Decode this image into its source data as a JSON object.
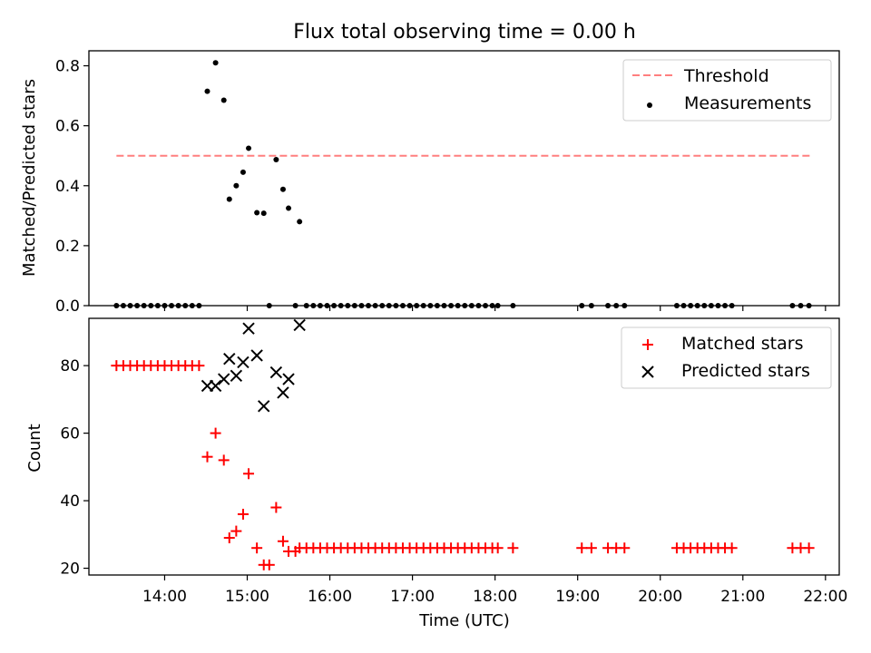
{
  "figure": {
    "title": "Flux total observing time = 0.00 h"
  },
  "colors": {
    "threshold": "#ff7f7f",
    "measurement": "#000000",
    "matched": "#ff0000",
    "predicted": "#000000"
  },
  "chart_data": [
    {
      "type": "scatter",
      "ylabel": "Matched/Predicted stars",
      "xlabel": "",
      "ylim": [
        0.0,
        0.85
      ],
      "xlim": [
        "13:05",
        "22:10"
      ],
      "x_axis_type": "time",
      "yticks": [
        "0.0",
        "0.2",
        "0.4",
        "0.6",
        "0.8"
      ],
      "legend_position": "upper right",
      "legend": [
        "Threshold",
        "Measurements"
      ],
      "threshold": {
        "name": "Threshold",
        "y": 0.5,
        "x_start": "13:25",
        "x_end": "21:50"
      },
      "series": [
        {
          "name": "Measurements",
          "points": [
            [
              "13:25",
              0
            ],
            [
              "13:30",
              0
            ],
            [
              "13:35",
              0
            ],
            [
              "13:40",
              0
            ],
            [
              "13:45",
              0
            ],
            [
              "13:50",
              0
            ],
            [
              "13:55",
              0
            ],
            [
              "14:00",
              0
            ],
            [
              "14:05",
              0
            ],
            [
              "14:10",
              0
            ],
            [
              "14:15",
              0
            ],
            [
              "14:20",
              0
            ],
            [
              "14:25",
              0
            ],
            [
              "14:31",
              0.715
            ],
            [
              "14:37",
              0.81
            ],
            [
              "14:43",
              0.685
            ],
            [
              "14:47",
              0.355
            ],
            [
              "14:52",
              0.4
            ],
            [
              "14:57",
              0.445
            ],
            [
              "15:01",
              0.525
            ],
            [
              "15:07",
              0.31
            ],
            [
              "15:12",
              0.308
            ],
            [
              "15:16",
              0.0
            ],
            [
              "15:21",
              0.487
            ],
            [
              "15:26",
              0.388
            ],
            [
              "15:30",
              0.325
            ],
            [
              "15:35",
              0.0
            ],
            [
              "15:38",
              0.28
            ],
            [
              "15:43",
              0
            ],
            [
              "15:48",
              0
            ],
            [
              "15:53",
              0
            ],
            [
              "15:58",
              0
            ],
            [
              "16:03",
              0
            ],
            [
              "16:08",
              0
            ],
            [
              "16:13",
              0
            ],
            [
              "16:18",
              0
            ],
            [
              "16:23",
              0
            ],
            [
              "16:28",
              0
            ],
            [
              "16:33",
              0
            ],
            [
              "16:38",
              0
            ],
            [
              "16:43",
              0
            ],
            [
              "16:48",
              0
            ],
            [
              "16:53",
              0
            ],
            [
              "16:58",
              0
            ],
            [
              "17:03",
              0
            ],
            [
              "17:08",
              0
            ],
            [
              "17:13",
              0
            ],
            [
              "17:18",
              0
            ],
            [
              "17:23",
              0
            ],
            [
              "17:28",
              0
            ],
            [
              "17:33",
              0
            ],
            [
              "17:38",
              0
            ],
            [
              "17:43",
              0
            ],
            [
              "17:48",
              0
            ],
            [
              "17:53",
              0
            ],
            [
              "17:58",
              0
            ],
            [
              "18:02",
              0
            ],
            [
              "18:13",
              0
            ],
            [
              "19:03",
              0
            ],
            [
              "19:10",
              0
            ],
            [
              "19:22",
              0
            ],
            [
              "19:28",
              0
            ],
            [
              "19:34",
              0
            ],
            [
              "20:12",
              0
            ],
            [
              "20:17",
              0
            ],
            [
              "20:22",
              0
            ],
            [
              "20:27",
              0
            ],
            [
              "20:32",
              0
            ],
            [
              "20:37",
              0
            ],
            [
              "20:42",
              0
            ],
            [
              "20:47",
              0
            ],
            [
              "20:52",
              0
            ],
            [
              "21:36",
              0
            ],
            [
              "21:42",
              0
            ],
            [
              "21:48",
              0
            ]
          ]
        }
      ]
    },
    {
      "type": "scatter",
      "ylabel": "Count",
      "xlabel": "Time (UTC)",
      "ylim": [
        18,
        94
      ],
      "xlim": [
        "13:05",
        "22:10"
      ],
      "x_axis_type": "time",
      "yticks": [
        "20",
        "40",
        "60",
        "80"
      ],
      "xticks": [
        "14:00",
        "15:00",
        "16:00",
        "17:00",
        "18:00",
        "19:00",
        "20:00",
        "21:00",
        "22:00"
      ],
      "legend_position": "upper right",
      "legend": [
        "Matched stars",
        "Predicted stars"
      ],
      "series": [
        {
          "name": "Matched stars",
          "marker": "+",
          "points": [
            [
              "13:25",
              80
            ],
            [
              "13:30",
              80
            ],
            [
              "13:35",
              80
            ],
            [
              "13:40",
              80
            ],
            [
              "13:45",
              80
            ],
            [
              "13:50",
              80
            ],
            [
              "13:55",
              80
            ],
            [
              "14:00",
              80
            ],
            [
              "14:05",
              80
            ],
            [
              "14:10",
              80
            ],
            [
              "14:15",
              80
            ],
            [
              "14:20",
              80
            ],
            [
              "14:25",
              80
            ],
            [
              "14:31",
              53
            ],
            [
              "14:37",
              60
            ],
            [
              "14:43",
              52
            ],
            [
              "14:47",
              29
            ],
            [
              "14:52",
              31
            ],
            [
              "14:57",
              36
            ],
            [
              "15:01",
              48
            ],
            [
              "15:07",
              26
            ],
            [
              "15:12",
              21
            ],
            [
              "15:16",
              21
            ],
            [
              "15:21",
              38
            ],
            [
              "15:26",
              28
            ],
            [
              "15:30",
              25
            ],
            [
              "15:35",
              25
            ],
            [
              "15:38",
              26
            ],
            [
              "15:43",
              26
            ],
            [
              "15:48",
              26
            ],
            [
              "15:53",
              26
            ],
            [
              "15:58",
              26
            ],
            [
              "16:03",
              26
            ],
            [
              "16:08",
              26
            ],
            [
              "16:13",
              26
            ],
            [
              "16:18",
              26
            ],
            [
              "16:23",
              26
            ],
            [
              "16:28",
              26
            ],
            [
              "16:33",
              26
            ],
            [
              "16:38",
              26
            ],
            [
              "16:43",
              26
            ],
            [
              "16:48",
              26
            ],
            [
              "16:53",
              26
            ],
            [
              "16:58",
              26
            ],
            [
              "17:03",
              26
            ],
            [
              "17:08",
              26
            ],
            [
              "17:13",
              26
            ],
            [
              "17:18",
              26
            ],
            [
              "17:23",
              26
            ],
            [
              "17:28",
              26
            ],
            [
              "17:33",
              26
            ],
            [
              "17:38",
              26
            ],
            [
              "17:43",
              26
            ],
            [
              "17:48",
              26
            ],
            [
              "17:53",
              26
            ],
            [
              "17:58",
              26
            ],
            [
              "18:02",
              26
            ],
            [
              "18:13",
              26
            ],
            [
              "19:03",
              26
            ],
            [
              "19:10",
              26
            ],
            [
              "19:22",
              26
            ],
            [
              "19:28",
              26
            ],
            [
              "19:34",
              26
            ],
            [
              "20:12",
              26
            ],
            [
              "20:17",
              26
            ],
            [
              "20:22",
              26
            ],
            [
              "20:27",
              26
            ],
            [
              "20:32",
              26
            ],
            [
              "20:37",
              26
            ],
            [
              "20:42",
              26
            ],
            [
              "20:47",
              26
            ],
            [
              "20:52",
              26
            ],
            [
              "21:36",
              26
            ],
            [
              "21:42",
              26
            ],
            [
              "21:48",
              26
            ]
          ]
        },
        {
          "name": "Predicted stars",
          "marker": "x",
          "points": [
            [
              "14:31",
              74
            ],
            [
              "14:37",
              74
            ],
            [
              "14:43",
              76
            ],
            [
              "14:47",
              82
            ],
            [
              "14:52",
              77
            ],
            [
              "14:57",
              81
            ],
            [
              "15:01",
              91
            ],
            [
              "15:07",
              83
            ],
            [
              "15:12",
              68
            ],
            [
              "15:21",
              78
            ],
            [
              "15:26",
              72
            ],
            [
              "15:30",
              76
            ],
            [
              "15:38",
              92
            ]
          ]
        }
      ]
    }
  ]
}
